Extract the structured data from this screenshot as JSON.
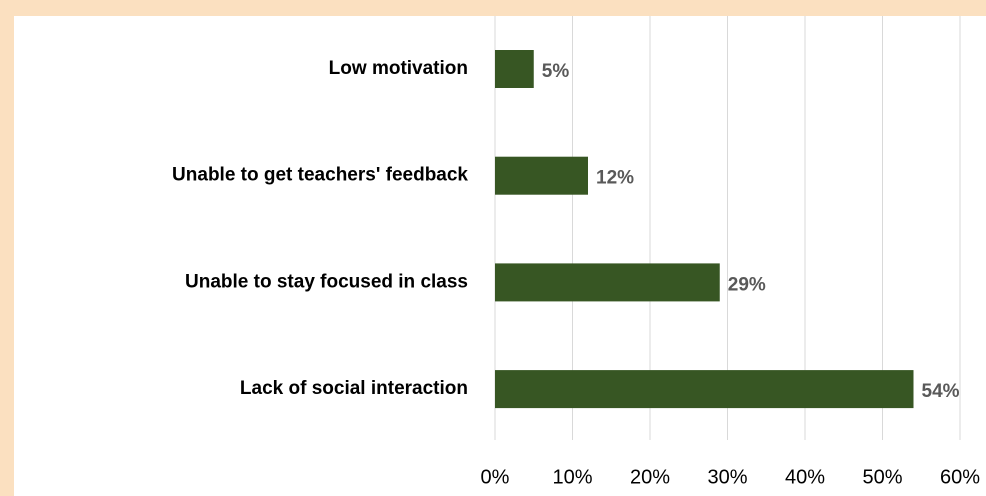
{
  "chart_data": {
    "type": "bar",
    "orientation": "horizontal",
    "categories": [
      "Low motivation",
      "Unable to get teachers' feedback",
      "Unable to stay focused in class",
      "Lack of social interaction"
    ],
    "values": [
      5,
      12,
      29,
      54
    ],
    "value_labels": [
      "5%",
      "12%",
      "29%",
      "54%"
    ],
    "color": "#375623",
    "xlim": [
      0,
      60
    ],
    "xticks": [
      {
        "value": 0,
        "label": "0%"
      },
      {
        "value": 10,
        "label": "10%"
      },
      {
        "value": 20,
        "label": "20%"
      },
      {
        "value": 30,
        "label": "30%"
      },
      {
        "value": 40,
        "label": "40%"
      },
      {
        "value": 50,
        "label": "50%"
      },
      {
        "value": 60,
        "label": "60%"
      }
    ],
    "grid": true
  }
}
